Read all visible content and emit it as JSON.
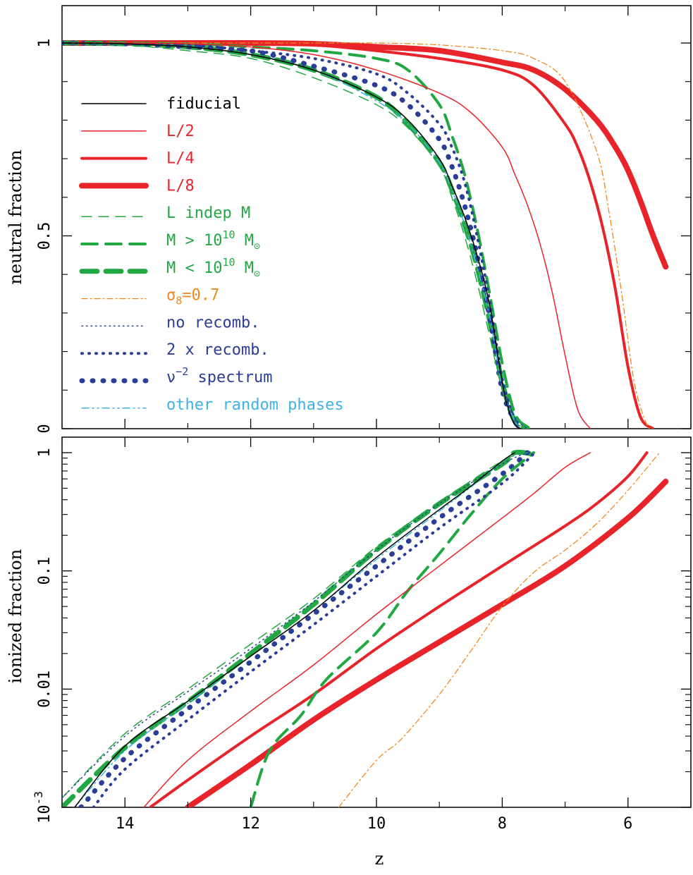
{
  "xlabel": "z",
  "chart_data": [
    {
      "type": "line",
      "panel": "top",
      "xlabel": "z",
      "ylabel": "neutral fraction",
      "xlim": [
        15,
        5
      ],
      "ylim": [
        0,
        1
      ],
      "y_scale": "linear",
      "x_ticks": [
        "14",
        "12",
        "10",
        "8",
        "6"
      ],
      "y_ticks": [
        "0",
        "0.5",
        "1"
      ],
      "legend_position": "left",
      "series": [
        {
          "id": "fid",
          "name": "fiducial",
          "color": "#000000",
          "x": [
            15,
            14,
            13,
            12,
            11,
            10,
            9.5,
            9,
            8.8,
            8.6,
            8.4,
            8.2,
            8.0,
            7.9,
            7.8,
            7.7
          ],
          "y": [
            1,
            0.998,
            0.99,
            0.97,
            0.93,
            0.86,
            0.8,
            0.7,
            0.63,
            0.55,
            0.45,
            0.32,
            0.12,
            0.05,
            0.01,
            0
          ]
        },
        {
          "id": "l2",
          "name": "L/2",
          "color": "#e8242a",
          "x": [
            15,
            14,
            13,
            12,
            11,
            10,
            9,
            8.5,
            8,
            7.8,
            7.6,
            7.4,
            7.2,
            7.0,
            6.8,
            6.6
          ],
          "y": [
            1,
            1,
            0.998,
            0.99,
            0.97,
            0.93,
            0.87,
            0.82,
            0.73,
            0.66,
            0.58,
            0.48,
            0.35,
            0.19,
            0.05,
            0
          ]
        },
        {
          "id": "l4",
          "name": "L/4",
          "color": "#e8242a",
          "x": [
            15,
            14,
            13,
            12,
            11,
            10,
            9,
            8,
            7.5,
            7,
            6.8,
            6.6,
            6.4,
            6.2,
            6.0,
            5.8,
            5.6
          ],
          "y": [
            1,
            1,
            1,
            0.998,
            0.995,
            0.98,
            0.96,
            0.93,
            0.89,
            0.79,
            0.73,
            0.64,
            0.52,
            0.36,
            0.16,
            0.03,
            0
          ]
        },
        {
          "id": "l8",
          "name": "L/8",
          "color": "#e8242a",
          "x": [
            15,
            14,
            13,
            12,
            11,
            10,
            9,
            8,
            7.5,
            7,
            6.5,
            6.2,
            6.0,
            5.8,
            5.6,
            5.4
          ],
          "y": [
            1,
            1,
            1,
            1,
            0.998,
            0.99,
            0.98,
            0.95,
            0.93,
            0.88,
            0.8,
            0.73,
            0.67,
            0.59,
            0.5,
            0.42
          ]
        },
        {
          "id": "lindep",
          "name": "L indep M",
          "color": "#22a843",
          "x": [
            15,
            14,
            13,
            12,
            11,
            10,
            9.5,
            9,
            8.8,
            8.6,
            8.4,
            8.2,
            8.0,
            7.8,
            7.6
          ],
          "y": [
            1,
            0.995,
            0.98,
            0.96,
            0.91,
            0.84,
            0.78,
            0.68,
            0.6,
            0.5,
            0.38,
            0.24,
            0.1,
            0.02,
            0
          ]
        },
        {
          "id": "mgt",
          "name": "M > 10^10 M_sun",
          "color": "#22a843",
          "x": [
            15,
            14,
            13,
            12,
            11,
            10,
            9.5,
            9,
            8.8,
            8.6,
            8.4,
            8.2,
            8.0,
            7.8,
            7.6,
            7.5
          ],
          "y": [
            1,
            1,
            0.998,
            0.99,
            0.98,
            0.96,
            0.93,
            0.84,
            0.76,
            0.66,
            0.52,
            0.35,
            0.17,
            0.04,
            0.005,
            0
          ]
        },
        {
          "id": "mlt",
          "name": "M < 10^10 M_sun",
          "color": "#22a843",
          "x": [
            15,
            14,
            13,
            12,
            11,
            10,
            9.5,
            9,
            8.8,
            8.6,
            8.4,
            8.2,
            8.0,
            7.8,
            7.6
          ],
          "y": [
            1,
            0.998,
            0.99,
            0.97,
            0.93,
            0.86,
            0.79,
            0.69,
            0.62,
            0.53,
            0.42,
            0.28,
            0.12,
            0.02,
            0
          ]
        },
        {
          "id": "sig",
          "name": "σ8=0.7",
          "color": "#f08a1e",
          "x": [
            15,
            14,
            13,
            12,
            11,
            10,
            9,
            8,
            7.5,
            7,
            6.5,
            6.3,
            6.1,
            5.9,
            5.7,
            5.6
          ],
          "y": [
            1,
            1,
            1,
            1,
            1,
            1,
            0.995,
            0.98,
            0.96,
            0.9,
            0.72,
            0.56,
            0.35,
            0.12,
            0.01,
            0
          ]
        },
        {
          "id": "norec",
          "name": "no recomb.",
          "color": "#2a3d97",
          "x": [
            15,
            14,
            13,
            12,
            11,
            10,
            9.5,
            9,
            8.8,
            8.6,
            8.4,
            8.2,
            8.0,
            7.8,
            7.6
          ],
          "y": [
            1,
            0.998,
            0.99,
            0.97,
            0.93,
            0.86,
            0.8,
            0.7,
            0.63,
            0.55,
            0.44,
            0.3,
            0.12,
            0.03,
            0
          ]
        },
        {
          "id": "rec2",
          "name": "2 x recomb.",
          "color": "#2a3d97",
          "x": [
            15,
            14,
            13,
            12,
            11,
            10,
            9.5,
            9,
            8.8,
            8.6,
            8.4,
            8.2,
            8.0,
            7.8,
            7.7
          ],
          "y": [
            1,
            0.998,
            0.995,
            0.98,
            0.96,
            0.92,
            0.87,
            0.79,
            0.73,
            0.64,
            0.5,
            0.33,
            0.13,
            0.02,
            0
          ]
        },
        {
          "id": "nu2",
          "name": "ν^-2 spectrum",
          "color": "#2a3d97",
          "x": [
            15,
            14,
            13,
            12,
            11,
            10,
            9.5,
            9,
            8.8,
            8.6,
            8.4,
            8.2,
            8.0,
            7.8,
            7.7
          ],
          "y": [
            1,
            0.998,
            0.99,
            0.98,
            0.94,
            0.89,
            0.84,
            0.75,
            0.68,
            0.58,
            0.45,
            0.29,
            0.1,
            0.02,
            0
          ]
        },
        {
          "id": "rnd",
          "name": "other random phases",
          "color": "#3fb2e6",
          "x": [
            15,
            14,
            13,
            12,
            11,
            10,
            9.5,
            9,
            8.8,
            8.6,
            8.4,
            8.2,
            8.0,
            7.8,
            7.7
          ],
          "y": [
            1,
            0.998,
            0.99,
            0.97,
            0.93,
            0.85,
            0.79,
            0.69,
            0.62,
            0.53,
            0.42,
            0.29,
            0.11,
            0.02,
            0
          ]
        }
      ]
    },
    {
      "type": "line",
      "panel": "bottom",
      "xlabel": "z",
      "ylabel": "ionized fraction",
      "xlim": [
        15,
        5
      ],
      "ylim": [
        0.001,
        1
      ],
      "y_scale": "log",
      "x_ticks": [
        "14",
        "12",
        "10",
        "8",
        "6"
      ],
      "y_ticks": [
        "10^-3",
        "0.01",
        "0.1",
        "1"
      ],
      "series": [
        {
          "id": "fid",
          "x": [
            14.8,
            14,
            13,
            12,
            11,
            10,
            9,
            8.5,
            8,
            7.8
          ],
          "y": [
            0.001,
            0.0033,
            0.0079,
            0.019,
            0.046,
            0.13,
            0.33,
            0.52,
            0.85,
            1
          ]
        },
        {
          "id": "l2",
          "x": [
            13.7,
            13,
            12,
            11,
            10,
            9,
            8,
            7.5,
            7,
            6.6
          ],
          "y": [
            0.001,
            0.0025,
            0.0065,
            0.016,
            0.043,
            0.11,
            0.28,
            0.45,
            0.75,
            1
          ]
        },
        {
          "id": "l4",
          "x": [
            13.6,
            13,
            12,
            11,
            10,
            9,
            8,
            7,
            6.5,
            6,
            5.7
          ],
          "y": [
            0.001,
            0.0017,
            0.004,
            0.009,
            0.022,
            0.05,
            0.11,
            0.24,
            0.37,
            0.63,
            1
          ]
        },
        {
          "id": "l8",
          "x": [
            13,
            12,
            11,
            10,
            9,
            8,
            7,
            6,
            5.4
          ],
          "y": [
            0.001,
            0.0023,
            0.0055,
            0.012,
            0.025,
            0.052,
            0.11,
            0.28,
            0.57
          ]
        },
        {
          "id": "lindep",
          "x": [
            15,
            14,
            13,
            12,
            11,
            10,
            9,
            8,
            7.6
          ],
          "y": [
            0.0012,
            0.0042,
            0.01,
            0.024,
            0.058,
            0.16,
            0.38,
            0.85,
            1
          ]
        },
        {
          "id": "mgt",
          "x": [
            12,
            11.7,
            11.2,
            10.8,
            10,
            9.5,
            9,
            8.5,
            8,
            7.5
          ],
          "y": [
            0.001,
            0.003,
            0.006,
            0.012,
            0.03,
            0.068,
            0.14,
            0.3,
            0.6,
            1
          ]
        },
        {
          "id": "mlt",
          "x": [
            15,
            14,
            13,
            12,
            11,
            10,
            9,
            8,
            7.8,
            7.5
          ],
          "y": [
            0.001,
            0.0032,
            0.0078,
            0.02,
            0.052,
            0.15,
            0.37,
            0.8,
            1,
            0.97
          ]
        },
        {
          "id": "sig",
          "x": [
            10.6,
            10,
            9.6,
            9,
            8.5,
            8,
            7.5,
            7,
            6.5,
            6,
            5.5
          ],
          "y": [
            0.001,
            0.0025,
            0.0038,
            0.009,
            0.021,
            0.05,
            0.097,
            0.15,
            0.25,
            0.48,
            1
          ]
        },
        {
          "id": "norec",
          "x": [
            15,
            14,
            13,
            12,
            11,
            10,
            9,
            8,
            7.6
          ],
          "y": [
            0.0012,
            0.004,
            0.0095,
            0.022,
            0.055,
            0.15,
            0.37,
            0.8,
            1
          ]
        },
        {
          "id": "rec2",
          "x": [
            14.5,
            14,
            13,
            12,
            11,
            10,
            9,
            8,
            7.5
          ],
          "y": [
            0.001,
            0.0021,
            0.0055,
            0.014,
            0.035,
            0.09,
            0.23,
            0.55,
            0.98
          ]
        },
        {
          "id": "nu2",
          "x": [
            14.7,
            14,
            13,
            12,
            11,
            10,
            9,
            8,
            7.6
          ],
          "y": [
            0.001,
            0.0026,
            0.0068,
            0.017,
            0.043,
            0.11,
            0.28,
            0.66,
            1
          ]
        },
        {
          "id": "rnd",
          "x": [
            14.8,
            14,
            13,
            12,
            11,
            10,
            9,
            8.5,
            8,
            7.8
          ],
          "y": [
            0.001,
            0.003,
            0.0076,
            0.019,
            0.046,
            0.125,
            0.32,
            0.51,
            0.84,
            1
          ]
        }
      ]
    }
  ],
  "legend": [
    {
      "id": "fid",
      "text": "fiducial",
      "color": "#000000"
    },
    {
      "id": "l2",
      "text": "L/2",
      "color": "#e8242a"
    },
    {
      "id": "l4",
      "text": "L/4",
      "color": "#e8242a"
    },
    {
      "id": "l8",
      "text": "L/8",
      "color": "#e8242a"
    },
    {
      "id": "lindep",
      "text": "L indep M",
      "color": "#22a843"
    },
    {
      "id": "mgt",
      "text_main": "M > 10",
      "sup": "10",
      "text_after": " M",
      "sub": "⊙",
      "color": "#22a843"
    },
    {
      "id": "mlt",
      "text_main": "M < 10",
      "sup": "10",
      "text_after": " M",
      "sub": "⊙",
      "color": "#22a843"
    },
    {
      "id": "sig",
      "text_main": "σ",
      "sub": "8",
      "text_after": "=0.7",
      "color": "#f08a1e"
    },
    {
      "id": "norec",
      "text": "no recomb.",
      "color": "#2a3d97"
    },
    {
      "id": "rec2",
      "text": "2 x recomb.",
      "color": "#2a3d97"
    },
    {
      "id": "nu2",
      "text_main": "ν",
      "sup": "−2",
      "text_after": " spectrum",
      "color": "#2a3d97"
    },
    {
      "id": "rnd",
      "text": "other random phases",
      "color": "#3fb2e6"
    }
  ],
  "styles": {
    "fid": {
      "width": 1.5,
      "dash": ""
    },
    "l2": {
      "width": 1.5,
      "dash": ""
    },
    "l4": {
      "width": 4,
      "dash": ""
    },
    "l8": {
      "width": 8,
      "dash": ""
    },
    "lindep": {
      "width": 1.5,
      "dash": "14 10"
    },
    "mgt": {
      "width": 4,
      "dash": "22 12"
    },
    "mlt": {
      "width": 7,
      "dash": "22 12"
    },
    "sig": {
      "width": 1.3,
      "dash": "8 4 2 4"
    },
    "norec": {
      "width": 1.5,
      "dash": "1.5 5"
    },
    "rec2": {
      "width": 4,
      "dash": "1 9"
    },
    "nu2": {
      "width": 7,
      "dash": "1 14"
    },
    "rnd": {
      "width": 1.5,
      "dash": "10 5 2 5 2 5"
    }
  }
}
